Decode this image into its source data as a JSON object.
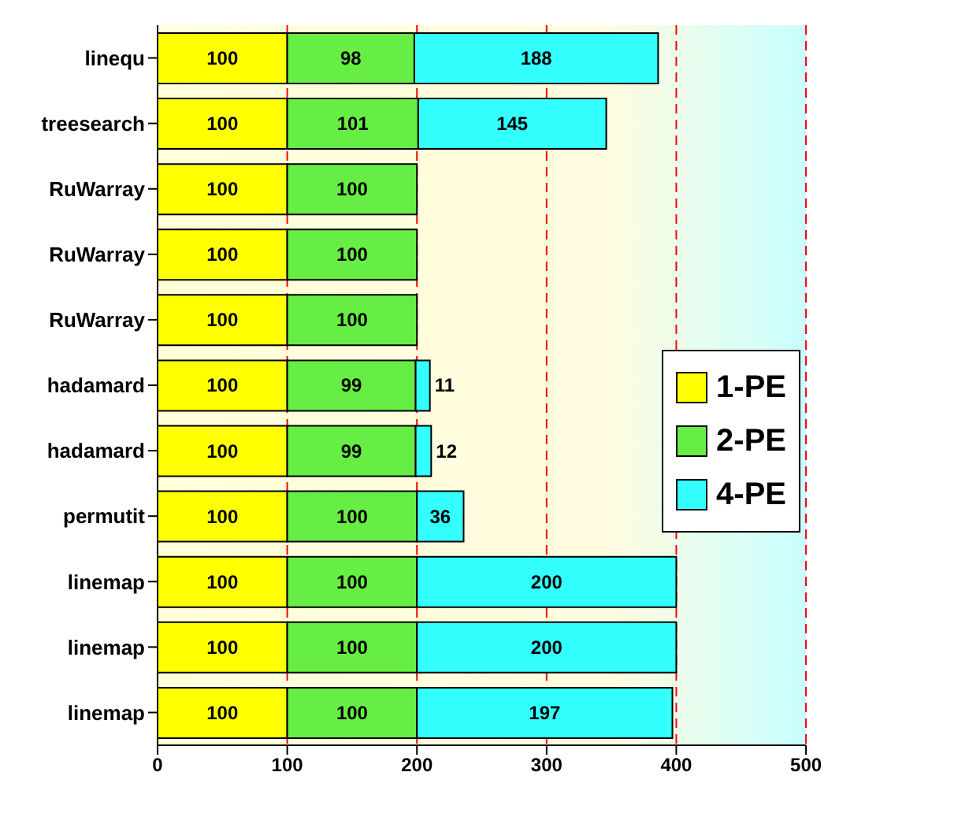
{
  "chart_data": {
    "type": "bar",
    "orientation": "horizontal",
    "stacked": true,
    "categories": [
      "linequ",
      "treesearch",
      "RuWarray",
      "RuWarray",
      "RuWarray",
      "hadamard",
      "hadamard",
      "permutit",
      "linemap",
      "linemap",
      "linemap"
    ],
    "series": [
      {
        "name": "1-PE",
        "color": "#ffff00",
        "values": [
          100,
          100,
          100,
          100,
          100,
          100,
          100,
          100,
          100,
          100,
          100
        ]
      },
      {
        "name": "2-PE",
        "color": "#66ee44",
        "values": [
          98,
          101,
          100,
          100,
          100,
          99,
          99,
          100,
          100,
          100,
          100
        ]
      },
      {
        "name": "4-PE",
        "color": "#33ffff",
        "values": [
          188,
          145,
          null,
          null,
          null,
          11,
          12,
          36,
          200,
          200,
          197
        ]
      }
    ],
    "xlim": [
      0,
      500
    ],
    "xticks": [
      0,
      100,
      200,
      300,
      400,
      500
    ],
    "grid": "x",
    "legend": "right",
    "data_labels": true
  }
}
